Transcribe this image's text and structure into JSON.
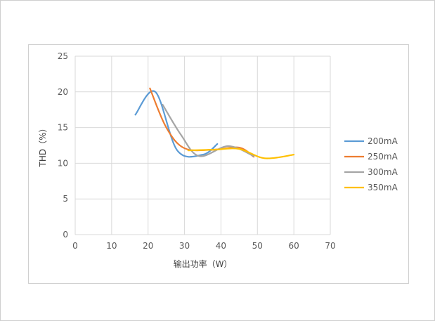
{
  "chart_data": {
    "type": "line",
    "xlabel": "输出功率（W）",
    "ylabel": "THD（%）",
    "xlim": [
      0,
      70
    ],
    "ylim": [
      0,
      25
    ],
    "x_ticks": [
      0,
      10,
      20,
      30,
      40,
      50,
      60,
      70
    ],
    "y_ticks": [
      0,
      5,
      10,
      15,
      20,
      25
    ],
    "grid": true,
    "legend_position": "right",
    "series": [
      {
        "name": "200mA",
        "color": "#5B9BD5",
        "x": [
          16.5,
          22,
          28,
          35,
          39
        ],
        "y": [
          16.8,
          20.0,
          11.8,
          11.2,
          12.7
        ]
      },
      {
        "name": "250mA",
        "color": "#ED7D31",
        "x": [
          20.5,
          25,
          30,
          38,
          45,
          49
        ],
        "y": [
          20.5,
          15.0,
          12.1,
          11.9,
          12.2,
          10.9
        ]
      },
      {
        "name": "300mA",
        "color": "#A5A5A5",
        "x": [
          24,
          29,
          34,
          42,
          49
        ],
        "y": [
          18.2,
          14.0,
          11.0,
          12.4,
          11.0
        ]
      },
      {
        "name": "350mA",
        "color": "#FFC000",
        "x": [
          31,
          38,
          45,
          52,
          60
        ],
        "y": [
          11.8,
          11.9,
          12.0,
          10.7,
          11.2
        ]
      }
    ]
  }
}
